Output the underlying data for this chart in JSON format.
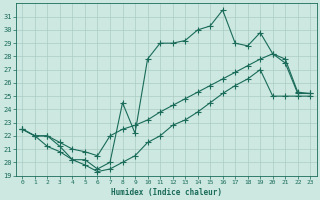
{
  "xlabel": "Humidex (Indice chaleur)",
  "ylabel": "",
  "x": [
    0,
    1,
    2,
    3,
    4,
    5,
    6,
    7,
    8,
    9,
    10,
    11,
    12,
    13,
    14,
    15,
    16,
    17,
    18,
    19,
    20,
    21,
    22,
    23
  ],
  "y_max": [
    22.5,
    22.0,
    22.0,
    21.2,
    20.2,
    20.2,
    19.5,
    20.0,
    24.5,
    22.2,
    27.8,
    29.0,
    29.0,
    29.2,
    30.0,
    30.3,
    31.5,
    29.0,
    28.8,
    29.8,
    28.2,
    27.5,
    25.2,
    25.2
  ],
  "y_min": [
    22.5,
    22.0,
    21.2,
    20.8,
    20.2,
    19.8,
    19.3,
    19.5,
    20.0,
    20.5,
    21.5,
    22.0,
    22.8,
    23.2,
    23.8,
    24.5,
    25.2,
    25.8,
    26.3,
    27.0,
    25.0,
    25.0,
    25.0,
    25.0
  ],
  "y_avg": [
    22.5,
    22.0,
    22.0,
    21.5,
    21.0,
    20.8,
    20.5,
    22.0,
    22.5,
    22.8,
    23.2,
    23.8,
    24.3,
    24.8,
    25.3,
    25.8,
    26.3,
    26.8,
    27.3,
    27.8,
    28.2,
    27.8,
    25.3,
    25.2
  ],
  "ylim": [
    19,
    32
  ],
  "xlim": [
    -0.5,
    23.5
  ],
  "yticks": [
    19,
    20,
    21,
    22,
    23,
    24,
    25,
    26,
    27,
    28,
    29,
    30,
    31
  ],
  "xticks": [
    0,
    1,
    2,
    3,
    4,
    5,
    6,
    7,
    8,
    9,
    10,
    11,
    12,
    13,
    14,
    15,
    16,
    17,
    18,
    19,
    20,
    21,
    22,
    23
  ],
  "bg_color": "#cce8e0",
  "grid_color": "#aaccC4",
  "line_color": "#1a6b5a",
  "marker": "+",
  "marker_size": 4.0,
  "line_width": 0.8
}
